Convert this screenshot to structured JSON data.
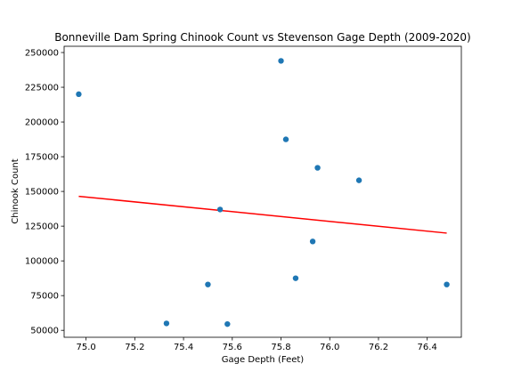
{
  "chart_data": {
    "type": "scatter",
    "title": "Bonneville Dam Spring Chinook Count vs Stevenson Gage Depth (2009-2020)",
    "xlabel": "Gage Depth (Feet)",
    "ylabel": "Chinook Count",
    "xlim": [
      74.91,
      76.54
    ],
    "ylim": [
      45000,
      254500
    ],
    "grid": false,
    "legend": "none",
    "x_ticks": [
      75.0,
      75.2,
      75.4,
      75.6,
      75.8,
      76.0,
      76.2,
      76.4
    ],
    "x_tick_labels": [
      "75.0",
      "75.2",
      "75.4",
      "75.6",
      "75.8",
      "76.0",
      "76.2",
      "76.4"
    ],
    "y_ticks": [
      50000,
      75000,
      100000,
      125000,
      150000,
      175000,
      200000,
      225000,
      250000
    ],
    "y_tick_labels": [
      "50000",
      "75000",
      "100000",
      "125000",
      "150000",
      "175000",
      "200000",
      "225000",
      "250000"
    ],
    "series": [
      {
        "type": "scatter",
        "color": "#1f77b4",
        "points": [
          {
            "x": 74.97,
            "y": 220000
          },
          {
            "x": 75.33,
            "y": 55000
          },
          {
            "x": 75.5,
            "y": 83000
          },
          {
            "x": 75.55,
            "y": 137000
          },
          {
            "x": 75.58,
            "y": 54500
          },
          {
            "x": 75.8,
            "y": 244000
          },
          {
            "x": 75.82,
            "y": 187500
          },
          {
            "x": 75.86,
            "y": 87500
          },
          {
            "x": 75.93,
            "y": 114000
          },
          {
            "x": 75.95,
            "y": 167000
          },
          {
            "x": 76.12,
            "y": 158000
          },
          {
            "x": 76.48,
            "y": 83000
          }
        ]
      },
      {
        "type": "line",
        "color": "#ff0000",
        "points": [
          {
            "x": 74.97,
            "y": 146500
          },
          {
            "x": 76.48,
            "y": 120000
          }
        ]
      }
    ]
  }
}
